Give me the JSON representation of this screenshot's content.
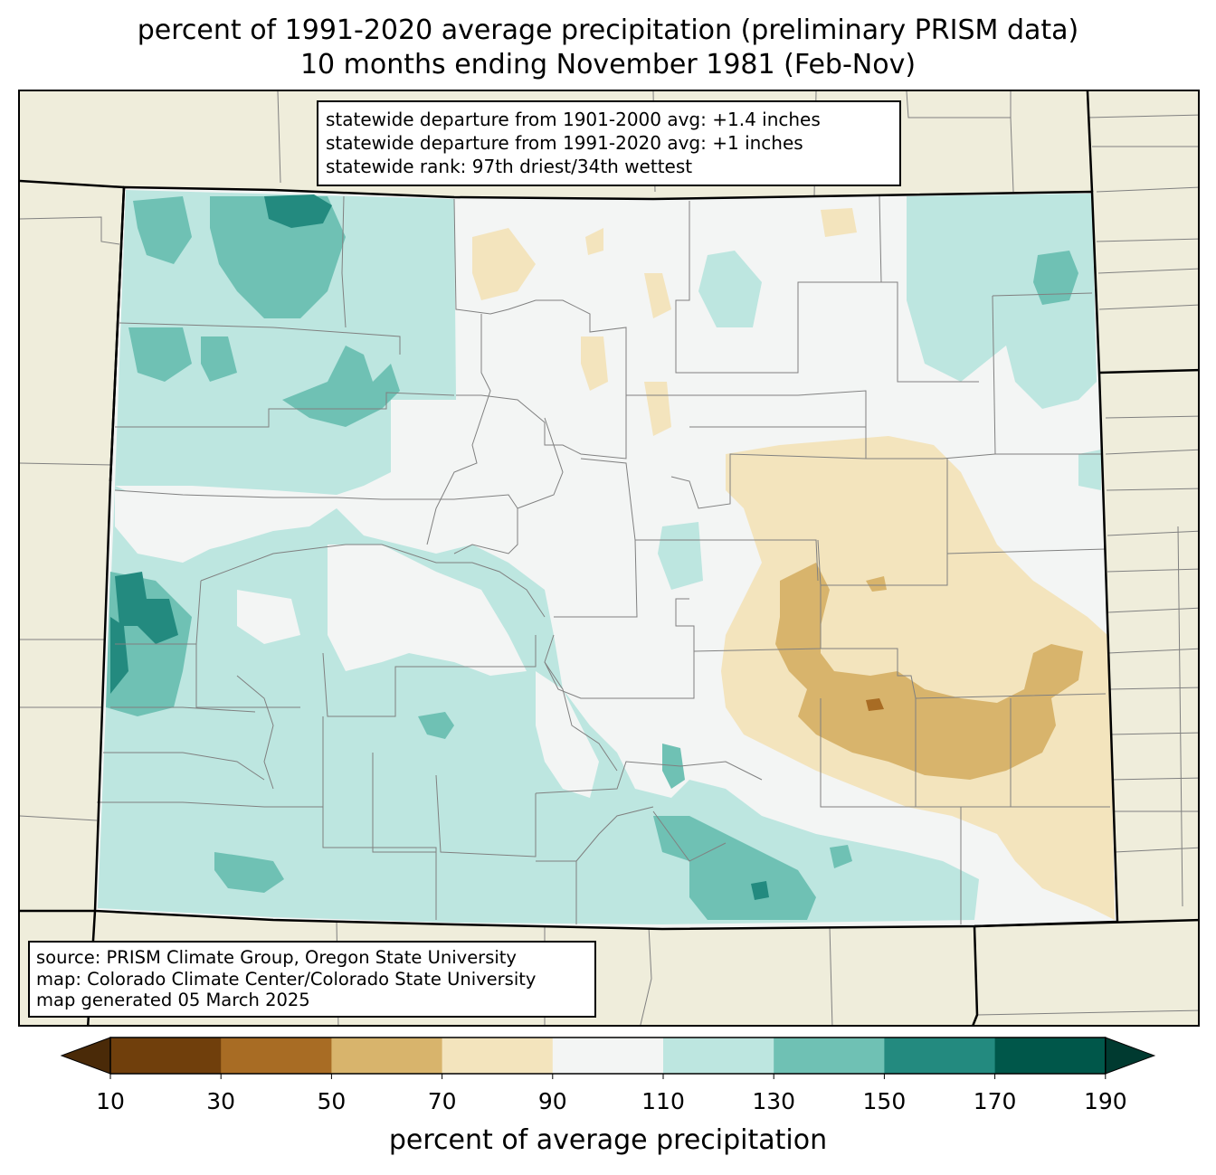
{
  "title_line1": "percent of 1991-2020 average precipitation (preliminary PRISM data)",
  "title_line2": "10 months ending November 1981 (Feb-Nov)",
  "stats": {
    "line1": "statewide departure from 1901-2000 avg: +1.4 inches",
    "line2": "statewide departure from 1991-2020 avg: +1 inches",
    "line3": "statewide rank: 97th driest/34th wettest"
  },
  "source": {
    "line1": "source: PRISM Climate Group, Oregon State University",
    "line2": "map: Colorado Climate Center/Colorado State University",
    "line3": "map generated 05 March 2025"
  },
  "colorbar": {
    "label": "percent of average precipitation",
    "ticks": [
      "10",
      "30",
      "50",
      "70",
      "90",
      "110",
      "130",
      "150",
      "170",
      "190"
    ],
    "colors": [
      "#703f0c",
      "#a86c24",
      "#d8b46c",
      "#f3e4bd",
      "#f3f5f4",
      "#bde6e0",
      "#6fc1b4",
      "#238a7f",
      "#00574a"
    ],
    "under_color": "#4a2a08",
    "over_color": "#003a30"
  },
  "map_colors": {
    "background": "#efeddb",
    "state_fill": "#f3f5f4",
    "boundary": "#000000",
    "county_line": "#808080"
  }
}
